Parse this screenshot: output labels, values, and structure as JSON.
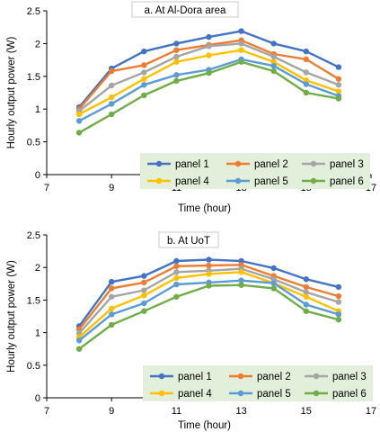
{
  "chart_data": [
    {
      "type": "line",
      "title": "a. At Al-Dora area",
      "xlabel": "Time (hour)",
      "ylabel": "Hourly output power (W)",
      "xlim": [
        7,
        17
      ],
      "ylim": [
        0,
        2.5
      ],
      "xticks": [
        7,
        9,
        11,
        13,
        15,
        17
      ],
      "yticks": [
        0,
        0.5,
        1,
        1.5,
        2,
        2.5
      ],
      "grid": false,
      "legend_placement": "bottom-center",
      "x": [
        8,
        9,
        10,
        11,
        12,
        13,
        14,
        15,
        16
      ],
      "series": [
        {
          "name": "panel 1",
          "color": "#4472C4",
          "values": [
            1.03,
            1.62,
            1.88,
            2.0,
            2.1,
            2.19,
            2.0,
            1.88,
            1.64
          ]
        },
        {
          "name": "panel 2",
          "color": "#ED7D31",
          "values": [
            1.0,
            1.58,
            1.67,
            1.9,
            1.98,
            2.05,
            1.84,
            1.76,
            1.46
          ]
        },
        {
          "name": "panel 3",
          "color": "#A5A5A5",
          "values": [
            0.97,
            1.36,
            1.56,
            1.8,
            1.96,
            2.0,
            1.8,
            1.56,
            1.37
          ]
        },
        {
          "name": "panel 4",
          "color": "#FFC000",
          "values": [
            0.92,
            1.18,
            1.46,
            1.72,
            1.82,
            1.9,
            1.72,
            1.44,
            1.27
          ]
        },
        {
          "name": "panel 5",
          "color": "#5B9BD5",
          "values": [
            0.82,
            1.08,
            1.37,
            1.52,
            1.6,
            1.76,
            1.66,
            1.38,
            1.2
          ]
        },
        {
          "name": "panel 6",
          "color": "#70AD47",
          "values": [
            0.64,
            0.92,
            1.21,
            1.43,
            1.55,
            1.72,
            1.58,
            1.25,
            1.16
          ]
        }
      ]
    },
    {
      "type": "line",
      "title": "b. At UoT",
      "xlabel": "Time (hour)",
      "ylabel": "Hourly output power (W)",
      "xlim": [
        7,
        17
      ],
      "ylim": [
        0,
        2.5
      ],
      "xticks": [
        7,
        9,
        11,
        13,
        15,
        17
      ],
      "yticks": [
        0,
        0.5,
        1,
        1.5,
        2,
        2.5
      ],
      "grid": false,
      "legend_placement": "bottom-center",
      "x": [
        8,
        9,
        10,
        11,
        12,
        13,
        14,
        15,
        16
      ],
      "series": [
        {
          "name": "panel 1",
          "color": "#4472C4",
          "values": [
            1.1,
            1.78,
            1.87,
            2.1,
            2.12,
            2.1,
            1.99,
            1.82,
            1.7
          ]
        },
        {
          "name": "panel 2",
          "color": "#ED7D31",
          "values": [
            1.05,
            1.68,
            1.77,
            2.02,
            2.03,
            2.04,
            1.87,
            1.7,
            1.56
          ]
        },
        {
          "name": "panel 3",
          "color": "#A5A5A5",
          "values": [
            0.99,
            1.55,
            1.65,
            1.93,
            1.95,
            1.98,
            1.82,
            1.62,
            1.47
          ]
        },
        {
          "name": "panel 4",
          "color": "#FFC000",
          "values": [
            0.93,
            1.37,
            1.57,
            1.84,
            1.9,
            1.93,
            1.76,
            1.55,
            1.33
          ]
        },
        {
          "name": "panel 5",
          "color": "#5B9BD5",
          "values": [
            0.88,
            1.28,
            1.45,
            1.74,
            1.77,
            1.8,
            1.76,
            1.43,
            1.28
          ]
        },
        {
          "name": "panel 6",
          "color": "#70AD47",
          "values": [
            0.75,
            1.12,
            1.33,
            1.55,
            1.72,
            1.73,
            1.68,
            1.33,
            1.2
          ]
        }
      ]
    }
  ]
}
